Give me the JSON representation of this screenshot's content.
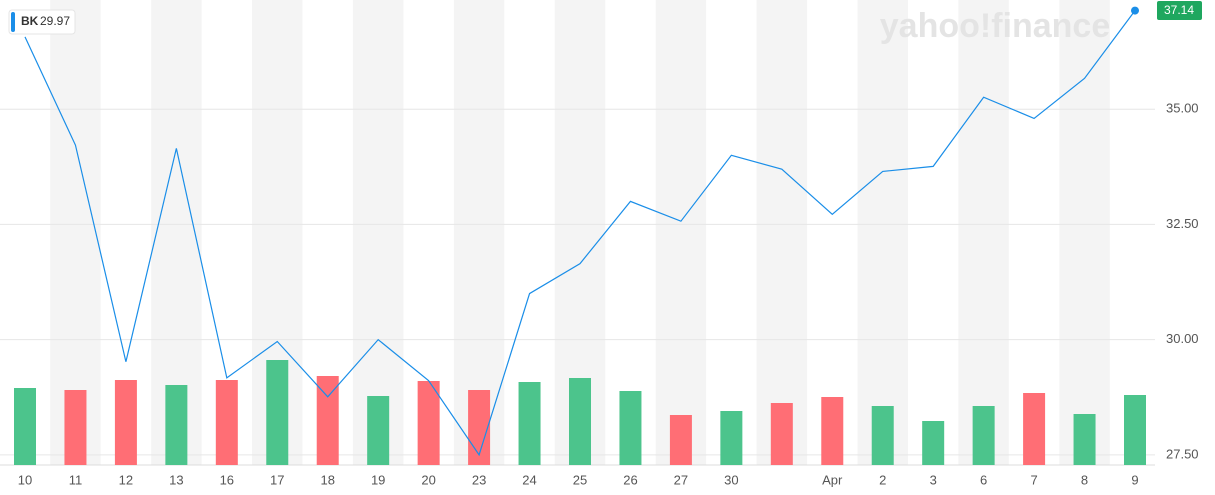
{
  "chart_data": {
    "type": "line",
    "watermark": "yahoo!finance",
    "categories": [
      "10",
      "11",
      "12",
      "13",
      "16",
      "17",
      "18",
      "19",
      "20",
      "23",
      "24",
      "25",
      "26",
      "27",
      "30",
      null,
      "Apr",
      "2",
      "3",
      "6",
      "7",
      "8",
      "9"
    ],
    "series": [
      {
        "name": "BK",
        "color": "#1a8ee8",
        "values": [
          36.57,
          34.22,
          29.52,
          34.15,
          29.17,
          29.96,
          28.76,
          30.0,
          29.11,
          27.5,
          31.0,
          31.65,
          33.0,
          32.57,
          34.0,
          33.7,
          32.72,
          33.65,
          33.76,
          35.26,
          34.8,
          35.67,
          37.14
        ]
      }
    ],
    "legend_value": 29.97,
    "last_color": "#1fa75f",
    "ylim": [
      27.28,
      37.37
    ],
    "yticks": [
      {
        "value": 27.5,
        "label": "27.50"
      },
      {
        "value": 30,
        "label": "30.00"
      },
      {
        "value": 32.5,
        "label": "32.50"
      },
      {
        "value": 35,
        "label": "35.00"
      }
    ],
    "grid": true,
    "volume": {
      "values": [
        77,
        75,
        85,
        80,
        85,
        105,
        89,
        69,
        84,
        75,
        83,
        87,
        74,
        50,
        54,
        62,
        68,
        59,
        44,
        59,
        72,
        51,
        70
      ],
      "colors": [
        "#4cc48c",
        "#ff6e75",
        "#ff6e75",
        "#4cc48c",
        "#ff6e75",
        "#4cc48c",
        "#ff6e75",
        "#4cc48c",
        "#ff6e75",
        "#ff6e75",
        "#4cc48c",
        "#4cc48c",
        "#4cc48c",
        "#ff6e75",
        "#4cc48c",
        "#ff6e75",
        "#ff6e75",
        "#4cc48c",
        "#4cc48c",
        "#4cc48c",
        "#ff6e75",
        "#4cc48c",
        "#4cc48c"
      ]
    }
  }
}
